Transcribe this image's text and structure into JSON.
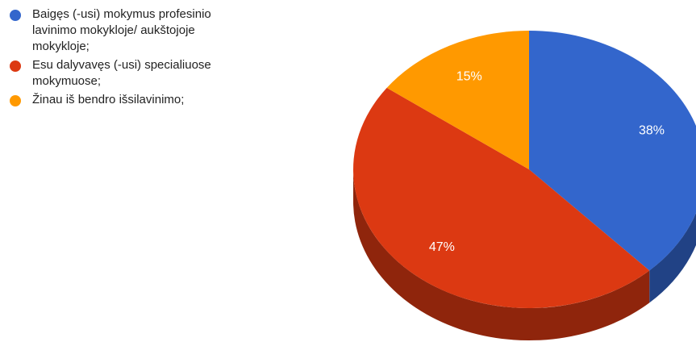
{
  "chart_data": {
    "type": "pie3d",
    "categories": [
      "Baigęs (-usi) mokymus profesinio lavinimo mokykloje/ aukštojoje mokykloje;",
      "Esu dalyvavęs (-usi) specialiuose mokymuose;",
      "Žinau iš bendro išsilavinimo;"
    ],
    "values": [
      38,
      47,
      15
    ],
    "value_labels": [
      "38%",
      "47%",
      "15%"
    ],
    "colors": [
      "#3366cc",
      "#dc3912",
      "#ff9900"
    ],
    "legend": "left"
  }
}
